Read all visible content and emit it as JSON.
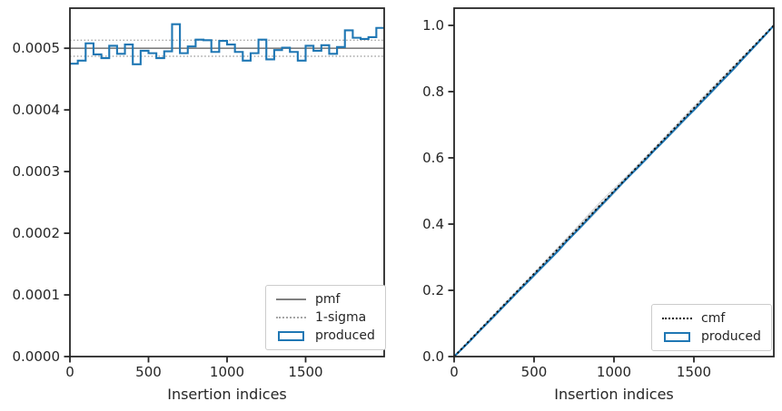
{
  "figure": {
    "background": "#ffffff",
    "axis_color": "#262626",
    "text_color": "#262626",
    "accent_blue": "#1f77b4"
  },
  "chart_data": [
    {
      "type": "line",
      "subtype": "step-histogram",
      "title": "",
      "xlabel": "Insertion indices",
      "ylabel": "",
      "xlim": [
        0,
        2000
      ],
      "ylim": [
        0,
        0.000565
      ],
      "xticks": [
        0,
        500,
        1000,
        1500
      ],
      "xtick_labels": [
        "0",
        "500",
        "1000",
        "1500"
      ],
      "yticks": [
        0.0,
        0.0001,
        0.0002,
        0.0003,
        0.0004,
        0.0005
      ],
      "ytick_labels": [
        "0.0000",
        "0.0001",
        "0.0002",
        "0.0003",
        "0.0004",
        "0.0005"
      ],
      "grid": false,
      "legend_position": "lower right",
      "bin_start": 0,
      "bin_width": 50,
      "values": [
        0.000475,
        0.00048,
        0.000508,
        0.00049,
        0.000484,
        0.000504,
        0.000491,
        0.000506,
        0.000474,
        0.000496,
        0.000492,
        0.000484,
        0.000495,
        0.000539,
        0.000492,
        0.000503,
        0.000514,
        0.000513,
        0.000494,
        0.000512,
        0.000506,
        0.000494,
        0.00048,
        0.000492,
        0.000514,
        0.000482,
        0.000497,
        0.000501,
        0.000494,
        0.00048,
        0.000504,
        0.000496,
        0.000505,
        0.000491,
        0.000502,
        0.000529,
        0.000517,
        0.000515,
        0.000518,
        0.000533
      ],
      "pmf_value": 0.0005,
      "sigma_upper": 0.000513,
      "sigma_lower": 0.000487,
      "colors": {
        "produced": "#1f77b4",
        "pmf": "#808080",
        "sigma": "#a6a6a6"
      },
      "legend": [
        {
          "label": "pmf",
          "swatch": "solid-gray"
        },
        {
          "label": "1-sigma",
          "swatch": "dotted-gray"
        },
        {
          "label": "produced",
          "swatch": "blue-rect"
        }
      ]
    },
    {
      "type": "line",
      "subtype": "cumulative",
      "title": "",
      "xlabel": "Insertion indices",
      "ylabel": "",
      "xlim": [
        0,
        2000
      ],
      "ylim": [
        0,
        1.052
      ],
      "xticks": [
        0,
        500,
        1000,
        1500
      ],
      "xtick_labels": [
        "0",
        "500",
        "1000",
        "1500"
      ],
      "yticks": [
        0.0,
        0.2,
        0.4,
        0.6,
        0.8,
        1.0
      ],
      "ytick_labels": [
        "0.0",
        "0.2",
        "0.4",
        "0.6",
        "0.8",
        "1.0"
      ],
      "grid": false,
      "legend_position": "lower right",
      "cmf": {
        "x": [
          0,
          2000
        ],
        "y": [
          0.0,
          1.0
        ]
      },
      "produced_derivation": "cumulative sum of left-plot bin values times bin width, from (0,0) to (2000,1.0)",
      "envelope": {
        "color": "#c9c9c9",
        "line_count": 6,
        "max_deviation": 0.01
      },
      "colors": {
        "produced": "#1f77b4",
        "cmf": "#111111"
      },
      "legend": [
        {
          "label": "cmf",
          "swatch": "dotted-black"
        },
        {
          "label": "produced",
          "swatch": "blue-rect"
        }
      ]
    }
  ]
}
